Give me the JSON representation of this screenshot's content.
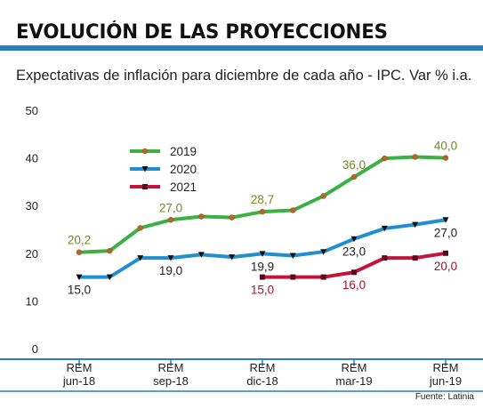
{
  "header": {
    "title": "EVOLUCIÓN DE LAS PROYECCIONES",
    "subtitle": "Expectativas de inflación para diciembre de cada año - IPC. Var % i.a.",
    "source": "Fuente: Latinia"
  },
  "colors": {
    "accent": "#2a7fc1",
    "s2019": "#3cb043",
    "s2020": "#1f8fcf",
    "s2021": "#c3143b",
    "label2019": "#6d8b1e",
    "label2020": "#222222",
    "label2021": "#a3122f"
  },
  "chart_data": {
    "type": "line",
    "title": "",
    "ylim": [
      0,
      50
    ],
    "yticks": [
      0,
      10,
      20,
      30,
      40,
      50
    ],
    "x": [
      0,
      1,
      2,
      3,
      4,
      5,
      6,
      7,
      8,
      9,
      10,
      11,
      12
    ],
    "x_ticks": [
      {
        "x": 0,
        "line1": "REM",
        "line2": "jun-18"
      },
      {
        "x": 3,
        "line1": "REM",
        "line2": "sep-18"
      },
      {
        "x": 6,
        "line1": "REM",
        "line2": "dic-18"
      },
      {
        "x": 9,
        "line1": "REM",
        "line2": "mar-19"
      },
      {
        "x": 12,
        "line1": "REM",
        "line2": "jun-19"
      }
    ],
    "legend_position": "upper-left",
    "series": [
      {
        "name": "2019",
        "color": "#3cb043",
        "marker": "circle",
        "values": [
          20.2,
          20.5,
          25.3,
          27.0,
          27.7,
          27.5,
          28.7,
          29.0,
          32.0,
          36.0,
          39.9,
          40.2,
          40.0
        ],
        "labels": [
          {
            "i": 0,
            "text": "20,2",
            "pos": "above"
          },
          {
            "i": 3,
            "text": "27,0",
            "pos": "above"
          },
          {
            "i": 6,
            "text": "28,7",
            "pos": "above"
          },
          {
            "i": 9,
            "text": "36,0",
            "pos": "above"
          },
          {
            "i": 12,
            "text": "40,0",
            "pos": "above"
          }
        ]
      },
      {
        "name": "2020",
        "color": "#1f8fcf",
        "marker": "triangle-down",
        "values": [
          15.0,
          15.0,
          19.0,
          19.0,
          19.7,
          19.2,
          19.9,
          19.5,
          20.3,
          23.0,
          25.2,
          26.0,
          27.0
        ],
        "labels": [
          {
            "i": 0,
            "text": "15,0",
            "pos": "below"
          },
          {
            "i": 3,
            "text": "19,0",
            "pos": "below"
          },
          {
            "i": 6,
            "text": "19,9",
            "pos": "below"
          },
          {
            "i": 9,
            "text": "23,0",
            "pos": "below"
          },
          {
            "i": 12,
            "text": "27,0",
            "pos": "below"
          }
        ]
      },
      {
        "name": "2021",
        "color": "#c3143b",
        "marker": "square",
        "values": [
          null,
          null,
          null,
          null,
          null,
          null,
          15.0,
          15.0,
          15.0,
          16.0,
          19.0,
          19.0,
          20.0
        ],
        "labels": [
          {
            "i": 6,
            "text": "15,0",
            "pos": "below"
          },
          {
            "i": 9,
            "text": "16,0",
            "pos": "below"
          },
          {
            "i": 12,
            "text": "20,0",
            "pos": "below"
          }
        ]
      }
    ]
  }
}
